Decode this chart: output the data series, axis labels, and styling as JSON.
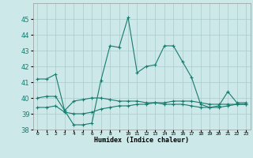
{
  "xlabel": "Humidex (Indice chaleur)",
  "x_indices": [
    0,
    1,
    2,
    3,
    4,
    5,
    6,
    7,
    8,
    9,
    10,
    11,
    12,
    13,
    14,
    15,
    16,
    17,
    18,
    19,
    20,
    21,
    22,
    23
  ],
  "x_labels": [
    "0",
    "1",
    "2",
    "3",
    "4",
    "5",
    "6",
    "7",
    "8",
    "",
    "10",
    "11",
    "12",
    "13",
    "14",
    "15",
    "16",
    "17",
    "18",
    "19",
    "20",
    "21",
    "22",
    "23"
  ],
  "line1": [
    41.2,
    41.2,
    41.5,
    39.2,
    38.3,
    38.3,
    38.4,
    41.1,
    43.3,
    43.2,
    45.1,
    41.6,
    42.0,
    42.1,
    43.3,
    43.3,
    42.3,
    41.3,
    39.6,
    39.4,
    39.5,
    40.4,
    39.7,
    39.7
  ],
  "line2": [
    40.0,
    40.1,
    40.1,
    39.2,
    39.8,
    39.9,
    40.0,
    40.0,
    39.9,
    39.8,
    39.8,
    39.8,
    39.7,
    39.7,
    39.6,
    39.6,
    39.6,
    39.5,
    39.4,
    39.4,
    39.4,
    39.5,
    39.6,
    39.6
  ],
  "line3": [
    39.4,
    39.4,
    39.5,
    39.1,
    39.0,
    39.0,
    39.1,
    39.3,
    39.4,
    39.5,
    39.5,
    39.6,
    39.6,
    39.7,
    39.7,
    39.8,
    39.8,
    39.8,
    39.7,
    39.6,
    39.6,
    39.6,
    39.6,
    39.6
  ],
  "line_color": "#1a7a6e",
  "bg_color": "#cce8e8",
  "grid_color": "#aacccc",
  "ylim": [
    38,
    46
  ],
  "yticks": [
    38,
    39,
    40,
    41,
    42,
    43,
    44,
    45
  ],
  "figsize": [
    3.2,
    2.0
  ],
  "dpi": 100
}
